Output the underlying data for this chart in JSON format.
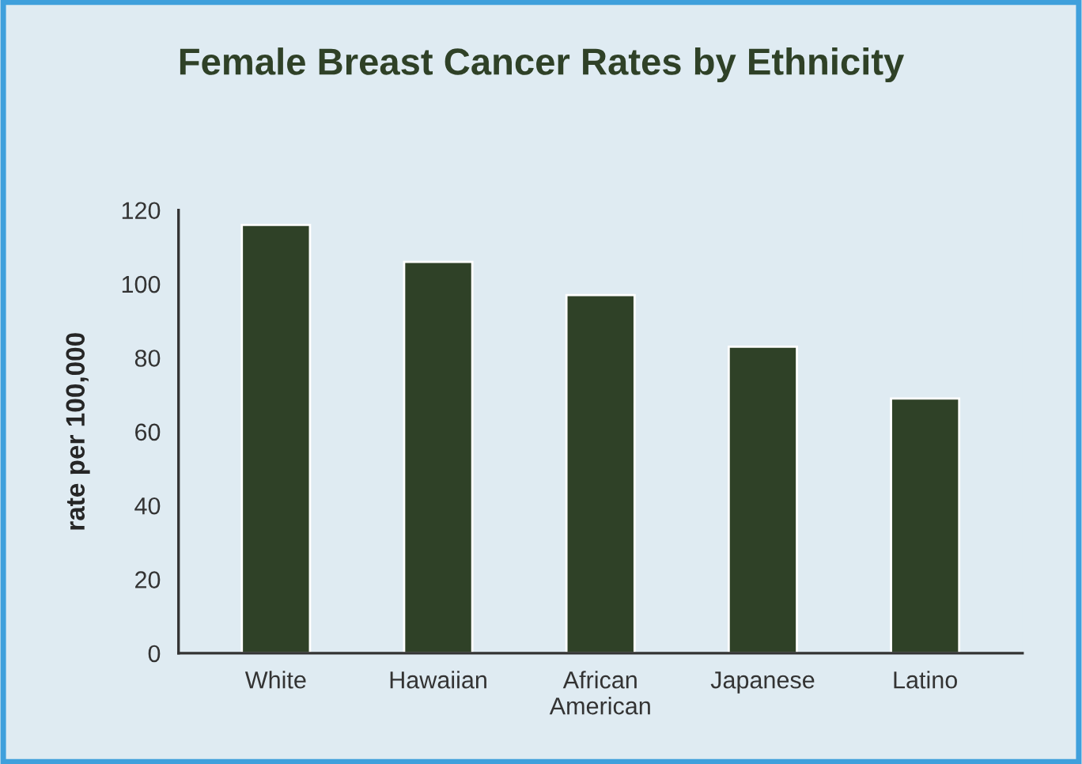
{
  "chart_data": {
    "type": "bar",
    "title": "Female Breast Cancer Rates by Ethnicity",
    "ylabel": "rate per 100,000",
    "categories": [
      "White",
      "Hawaiian",
      "African\nAmerican",
      "Japanese",
      "Latino"
    ],
    "values": [
      116,
      106,
      97,
      83,
      69
    ],
    "color": "#2f4127",
    "ylim": [
      0,
      120
    ],
    "yticks": [
      0,
      20,
      40,
      60,
      80,
      100,
      120
    ],
    "grid": false
  }
}
